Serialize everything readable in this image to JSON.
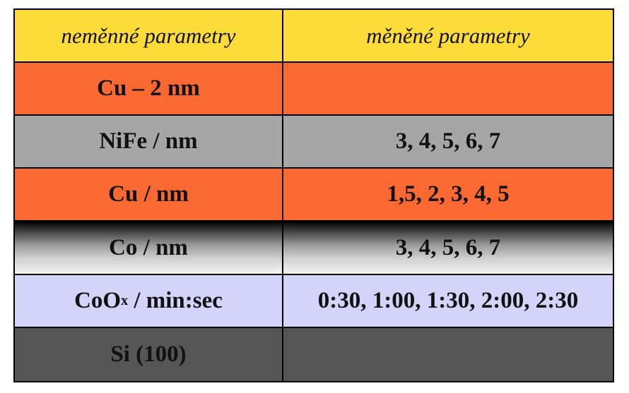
{
  "header": {
    "left": "neměnné parametry",
    "right": "měněné parametry"
  },
  "rows": [
    {
      "left": "Cu – 2 nm",
      "right": ""
    },
    {
      "left": "NiFe / nm",
      "right": "3, 4, 5, 6, 7"
    },
    {
      "left": "Cu / nm",
      "right": "1,5, 2, 3, 4, 5"
    },
    {
      "left": "Co / nm",
      "right": "3, 4, 5, 6, 7"
    },
    {
      "left_main": "CoO",
      "left_sub": "x",
      "left_rest": " / min:sec",
      "right": "0:30, 1:00, 1:30, 2:00, 2:30"
    },
    {
      "left": "Si (100)",
      "right": ""
    }
  ],
  "colors": {
    "header": "#fddb38",
    "cu": "#fb6933",
    "nife": "#a6a6a6",
    "co_gradient": [
      "#000000",
      "#f4f4f4"
    ],
    "coox": "#d4d3f9",
    "si": "#555555"
  }
}
